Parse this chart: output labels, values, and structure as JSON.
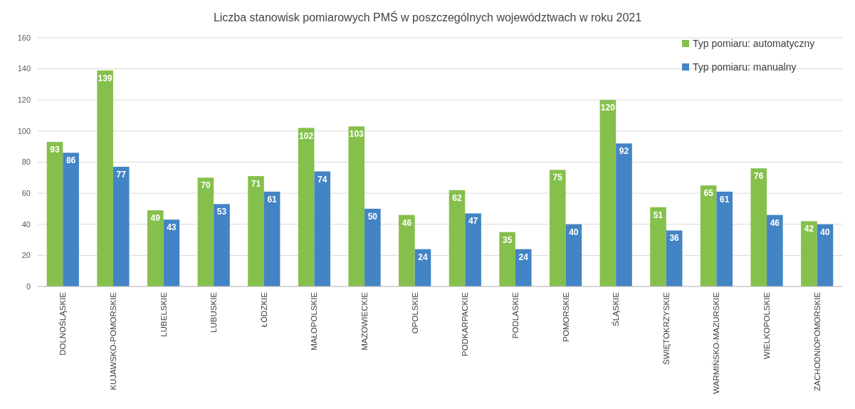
{
  "chart_data": {
    "type": "bar",
    "title": "Liczba stanowisk pomiarowych PMŚ w poszczególnych województwach w roku 2021",
    "categories": [
      "DOLNOŚLĄSKIE",
      "KUJAWSKO-POMORSKIE",
      "LUBELSKIE",
      "LUBUSKIE",
      "ŁÓDZKIE",
      "MAŁOPOLSKIE",
      "MAZOWIECKIE",
      "OPOLSKIE",
      "PODKARPACKIE",
      "PODLASKIE",
      "POMORSKIE",
      "ŚLĄSKIE",
      "ŚWIĘTOKRZYSKIE",
      "WARMIŃSKO-MAZURSKIE",
      "WIELKOPOLSKIE",
      "ZACHODNIOPOMORSKIE"
    ],
    "series": [
      {
        "name": "Typ pomiaru: automatyczny",
        "color": "#86c04c",
        "values": [
          93,
          139,
          49,
          70,
          71,
          102,
          103,
          46,
          62,
          35,
          75,
          120,
          51,
          65,
          76,
          42
        ]
      },
      {
        "name": "Typ pomiaru: manualny",
        "color": "#4384c4",
        "values": [
          86,
          77,
          43,
          53,
          61,
          74,
          50,
          24,
          47,
          24,
          40,
          92,
          36,
          61,
          46,
          40
        ]
      }
    ],
    "ylim": [
      0,
      160
    ],
    "yticks": [
      0,
      20,
      40,
      60,
      80,
      100,
      120,
      140,
      160
    ],
    "grid": "y",
    "legend": "top right",
    "data_labels": true
  }
}
